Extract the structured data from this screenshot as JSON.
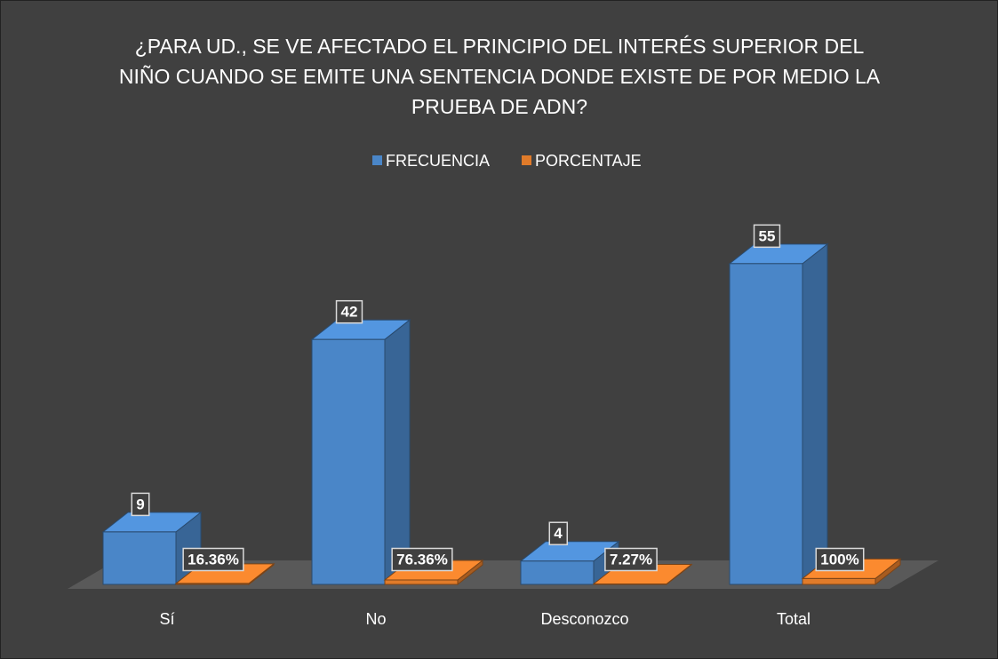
{
  "chart_data": {
    "type": "bar3d",
    "title": "¿PARA UD., SE VE AFECTADO EL PRINCIPIO DEL INTERÉS SUPERIOR DEL NIÑO CUANDO SE EMITE UNA SENTENCIA DONDE EXISTE DE POR MEDIO LA PRUEBA DE ADN?",
    "categories": [
      "Sí",
      "No",
      "Desconozco",
      "Total"
    ],
    "series": [
      {
        "name": "FRECUENCIA",
        "color": "#4a86c8",
        "values": [
          9,
          42,
          4,
          55
        ]
      },
      {
        "name": "PORCENTAJE",
        "color": "#e07b2a",
        "values": [
          0.1636,
          0.7636,
          0.0727,
          1
        ],
        "value_labels": [
          "16.36%",
          "76.36%",
          "7.27%",
          "100%"
        ]
      }
    ],
    "ylim": [
      0,
      60
    ],
    "legend": "top"
  }
}
